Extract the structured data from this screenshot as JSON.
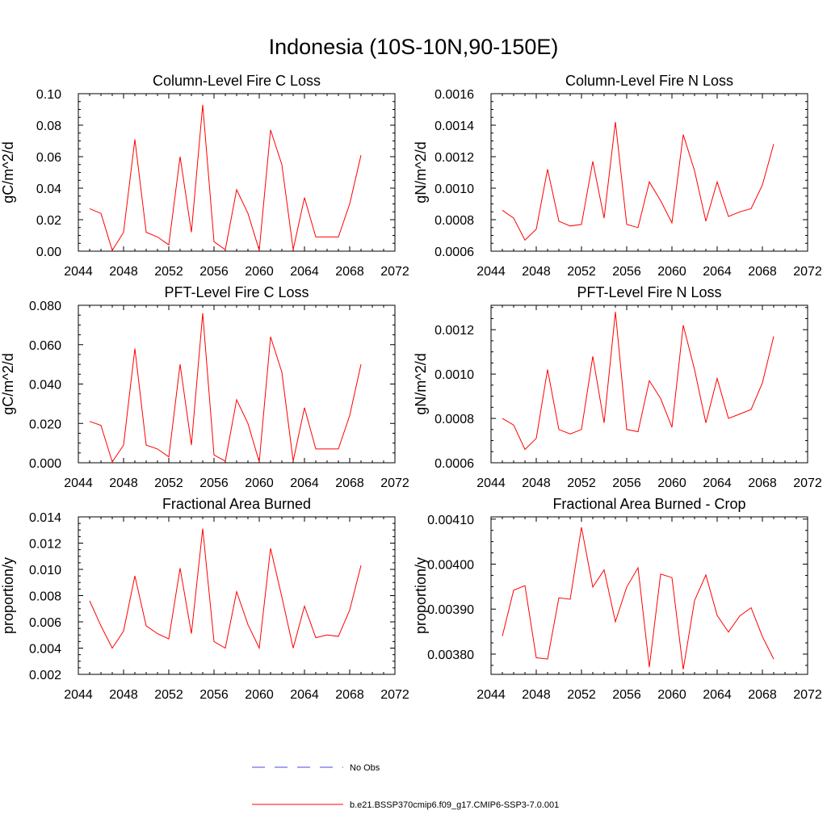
{
  "title": "Indonesia (10S-10N,90-150E)",
  "colors": {
    "series": "#ff0000",
    "obs": "#4a4ae0",
    "axis": "#000000"
  },
  "legend": [
    {
      "label": "No Obs",
      "style": "dashed",
      "color": "#4a4ae0"
    },
    {
      "label": "b.e21.BSSP370cmip6.f09_g17.CMIP6-SSP3-7.0.001",
      "style": "solid",
      "color": "#ff0000"
    }
  ],
  "chart_data": [
    {
      "type": "line",
      "title": "Column-Level Fire C Loss",
      "ylabel": "gC/m^2/d",
      "xlim": [
        2044,
        2072
      ],
      "ylim": [
        0,
        0.1
      ],
      "xticks": [
        "2044",
        "2048",
        "2052",
        "2056",
        "2060",
        "2064",
        "2068",
        "2072"
      ],
      "yticks": [
        "0.00",
        "0.02",
        "0.04",
        "0.06",
        "0.08",
        "0.10"
      ],
      "x": [
        2045,
        2046,
        2047,
        2048,
        2049,
        2050,
        2051,
        2052,
        2053,
        2054,
        2055,
        2056,
        2057,
        2058,
        2059,
        2060,
        2061,
        2062,
        2063,
        2064,
        2065,
        2066,
        2067,
        2068,
        2069
      ],
      "series": [
        {
          "name": "b.e21.BSSP370cmip6.f09_g17.CMIP6-SSP3-7.0.001",
          "values": [
            0.027,
            0.024,
            0.0005,
            0.012,
            0.071,
            0.012,
            0.009,
            0.004,
            0.06,
            0.012,
            0.093,
            0.006,
            0.001,
            0.039,
            0.024,
            0.0005,
            0.077,
            0.055,
            0.001,
            0.034,
            0.009,
            0.009,
            0.009,
            0.03,
            0.061
          ]
        }
      ]
    },
    {
      "type": "line",
      "title": "Column-Level Fire N Loss",
      "ylabel": "gN/m^2/d",
      "xlim": [
        2044,
        2072
      ],
      "ylim": [
        0.0006,
        0.0016
      ],
      "xticks": [
        "2044",
        "2048",
        "2052",
        "2056",
        "2060",
        "2064",
        "2068",
        "2072"
      ],
      "yticks": [
        "0.0006",
        "0.0008",
        "0.0010",
        "0.0012",
        "0.0014",
        "0.0016"
      ],
      "x": [
        2045,
        2046,
        2047,
        2048,
        2049,
        2050,
        2051,
        2052,
        2053,
        2054,
        2055,
        2056,
        2057,
        2058,
        2059,
        2060,
        2061,
        2062,
        2063,
        2064,
        2065,
        2066,
        2067,
        2068,
        2069
      ],
      "series": [
        {
          "name": "b.e21.BSSP370cmip6.f09_g17.CMIP6-SSP3-7.0.001",
          "values": [
            0.00086,
            0.00081,
            0.00067,
            0.00074,
            0.00112,
            0.00079,
            0.00076,
            0.00077,
            0.00117,
            0.00081,
            0.00142,
            0.00077,
            0.00075,
            0.00104,
            0.00092,
            0.00078,
            0.00134,
            0.00111,
            0.00079,
            0.00104,
            0.00082,
            0.00085,
            0.00087,
            0.00102,
            0.00128
          ]
        }
      ]
    },
    {
      "type": "line",
      "title": "PFT-Level Fire C Loss",
      "ylabel": "gC/m^2/d",
      "xlim": [
        2044,
        2072
      ],
      "ylim": [
        0,
        0.08
      ],
      "xticks": [
        "2044",
        "2048",
        "2052",
        "2056",
        "2060",
        "2064",
        "2068",
        "2072"
      ],
      "yticks": [
        "0.000",
        "0.020",
        "0.040",
        "0.060",
        "0.080"
      ],
      "x": [
        2045,
        2046,
        2047,
        2048,
        2049,
        2050,
        2051,
        2052,
        2053,
        2054,
        2055,
        2056,
        2057,
        2058,
        2059,
        2060,
        2061,
        2062,
        2063,
        2064,
        2065,
        2066,
        2067,
        2068,
        2069
      ],
      "series": [
        {
          "name": "b.e21.BSSP370cmip6.f09_g17.CMIP6-SSP3-7.0.001",
          "values": [
            0.021,
            0.019,
            0.0004,
            0.009,
            0.058,
            0.009,
            0.007,
            0.003,
            0.05,
            0.009,
            0.076,
            0.004,
            0.0008,
            0.032,
            0.02,
            0.0004,
            0.064,
            0.046,
            0.0008,
            0.028,
            0.007,
            0.007,
            0.007,
            0.024,
            0.05
          ]
        }
      ]
    },
    {
      "type": "line",
      "title": "PFT-Level Fire N Loss",
      "ylabel": "gN/m^2/d",
      "xlim": [
        2044,
        2072
      ],
      "ylim": [
        0.0006,
        0.00131
      ],
      "xticks": [
        "2044",
        "2048",
        "2052",
        "2056",
        "2060",
        "2064",
        "2068",
        "2072"
      ],
      "yticks": [
        "0.0006",
        "0.0008",
        "0.0010",
        "0.0012"
      ],
      "x": [
        2045,
        2046,
        2047,
        2048,
        2049,
        2050,
        2051,
        2052,
        2053,
        2054,
        2055,
        2056,
        2057,
        2058,
        2059,
        2060,
        2061,
        2062,
        2063,
        2064,
        2065,
        2066,
        2067,
        2068,
        2069
      ],
      "series": [
        {
          "name": "b.e21.BSSP370cmip6.f09_g17.CMIP6-SSP3-7.0.001",
          "values": [
            0.0008,
            0.00077,
            0.00066,
            0.00071,
            0.00102,
            0.00075,
            0.00073,
            0.00075,
            0.00108,
            0.00078,
            0.00128,
            0.00075,
            0.00074,
            0.00097,
            0.00089,
            0.00076,
            0.00122,
            0.00102,
            0.00078,
            0.00098,
            0.0008,
            0.00082,
            0.00084,
            0.00096,
            0.00117
          ]
        }
      ]
    },
    {
      "type": "line",
      "title": "Fractional Area Burned",
      "ylabel": "proportion/y",
      "xlim": [
        2044,
        2072
      ],
      "ylim": [
        0.002,
        0.014
      ],
      "xticks": [
        "2044",
        "2048",
        "2052",
        "2056",
        "2060",
        "2064",
        "2068",
        "2072"
      ],
      "yticks": [
        "0.002",
        "0.004",
        "0.006",
        "0.008",
        "0.010",
        "0.012",
        "0.014"
      ],
      "x": [
        2045,
        2046,
        2047,
        2048,
        2049,
        2050,
        2051,
        2052,
        2053,
        2054,
        2055,
        2056,
        2057,
        2058,
        2059,
        2060,
        2061,
        2062,
        2063,
        2064,
        2065,
        2066,
        2067,
        2068,
        2069
      ],
      "series": [
        {
          "name": "b.e21.BSSP370cmip6.f09_g17.CMIP6-SSP3-7.0.001",
          "values": [
            0.0076,
            0.0057,
            0.004,
            0.0053,
            0.0095,
            0.0057,
            0.0051,
            0.0047,
            0.0101,
            0.0051,
            0.0131,
            0.0045,
            0.004,
            0.0083,
            0.0058,
            0.004,
            0.0116,
            0.0079,
            0.004,
            0.0072,
            0.0048,
            0.005,
            0.0049,
            0.0069,
            0.0103
          ]
        }
      ]
    },
    {
      "type": "line",
      "title": "Fractional Area Burned - Crop",
      "ylabel": "proportion/y",
      "xlim": [
        2044,
        2072
      ],
      "ylim": [
        0.003755,
        0.004105
      ],
      "xticks": [
        "2044",
        "2048",
        "2052",
        "2056",
        "2060",
        "2064",
        "2068",
        "2072"
      ],
      "yticks": [
        "0.00380",
        "0.00390",
        "0.00400",
        "0.00410"
      ],
      "x": [
        2045,
        2046,
        2047,
        2048,
        2049,
        2050,
        2051,
        2052,
        2053,
        2054,
        2055,
        2056,
        2057,
        2058,
        2059,
        2060,
        2061,
        2062,
        2063,
        2064,
        2065,
        2066,
        2067,
        2068,
        2069
      ],
      "series": [
        {
          "name": "b.e21.BSSP370cmip6.f09_g17.CMIP6-SSP3-7.0.001",
          "values": [
            0.00384,
            0.003942,
            0.003952,
            0.003792,
            0.003789,
            0.003925,
            0.003922,
            0.004082,
            0.003949,
            0.003987,
            0.003872,
            0.003949,
            0.003992,
            0.003771,
            0.003978,
            0.00397,
            0.003766,
            0.003919,
            0.003976,
            0.003886,
            0.003849,
            0.003885,
            0.003903,
            0.003839,
            0.003789
          ]
        }
      ]
    }
  ]
}
